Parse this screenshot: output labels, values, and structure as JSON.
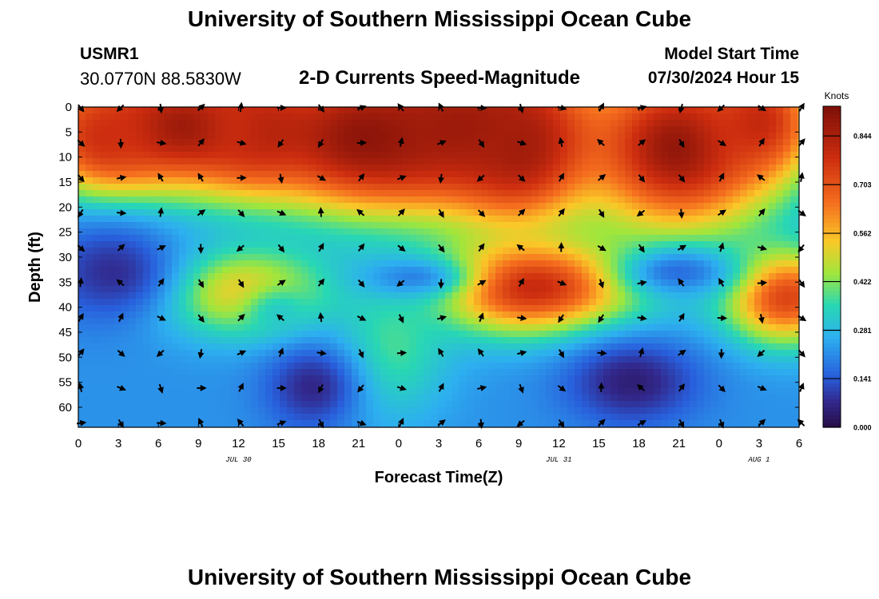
{
  "page": {
    "title": "University of Southern Mississippi Ocean Cube",
    "title_bottom": "University of Southern Mississippi Ocean Cube",
    "station_id": "USMR1",
    "station_coords": "30.0770N  88.5830W",
    "subtitle": "2-D Currents Speed-Magnitude",
    "model_start_label": "Model Start Time",
    "model_start_value": "07/30/2024 Hour 15"
  },
  "chart_data": {
    "type": "heatmap",
    "title": "2-D Currents Speed-Magnitude",
    "xlabel": "Forecast Time(Z)",
    "ylabel": "Depth (ft)",
    "x_range_hours": [
      0,
      54
    ],
    "y_range_ft": [
      0,
      64
    ],
    "x_tick_values": [
      0,
      3,
      6,
      9,
      12,
      15,
      18,
      21,
      24,
      27,
      30,
      33,
      36,
      39,
      42,
      45,
      48,
      51,
      54
    ],
    "x_tick_labels": [
      "0",
      "3",
      "6",
      "9",
      "12",
      "15",
      "18",
      "21",
      "0",
      "3",
      "6",
      "9",
      "12",
      "15",
      "18",
      "21",
      "0",
      "3",
      "6"
    ],
    "y_tick_values": [
      0,
      5,
      10,
      15,
      20,
      25,
      30,
      35,
      40,
      45,
      50,
      55,
      60
    ],
    "y_tick_labels": [
      "0",
      "5",
      "10",
      "15",
      "20",
      "25",
      "30",
      "35",
      "40",
      "45",
      "50",
      "55",
      "60"
    ],
    "date_labels": [
      {
        "label": "JUL 30",
        "hour": 12
      },
      {
        "label": "JUL 31",
        "hour": 36
      },
      {
        "label": "AUG 1",
        "hour": 51
      }
    ],
    "colorbar": {
      "unit": "Knots",
      "ticks": [
        0.0,
        0.141,
        0.281,
        0.422,
        0.562,
        0.703,
        0.844
      ],
      "tick_labels": [
        "0.000",
        "0.141",
        "0.281",
        "0.422",
        "0.562",
        "0.703",
        "0.844"
      ],
      "max": 0.93
    },
    "speed_hotspots": [
      {
        "hour": 8,
        "depth": 4,
        "value": 0.9,
        "sx": 7,
        "sy": 9
      },
      {
        "hour": 2,
        "depth": 6,
        "value": 0.78,
        "sx": 3,
        "sy": 7
      },
      {
        "hour": 13,
        "depth": 4,
        "value": 0.75,
        "sx": 2.5,
        "sy": 7
      },
      {
        "hour": 22,
        "depth": 6,
        "value": 0.92,
        "sx": 6,
        "sy": 10
      },
      {
        "hour": 29,
        "depth": 4,
        "value": 0.88,
        "sx": 6,
        "sy": 10
      },
      {
        "hour": 33,
        "depth": 8,
        "value": 0.86,
        "sx": 3.5,
        "sy": 10
      },
      {
        "hour": 45,
        "depth": 8,
        "value": 0.9,
        "sx": 5,
        "sy": 12
      },
      {
        "hour": 51,
        "depth": 3,
        "value": 0.8,
        "sx": 3,
        "sy": 8
      },
      {
        "hour": 12.5,
        "depth": 37,
        "value": 0.56,
        "sx": 4.5,
        "sy": 6
      },
      {
        "hour": 34,
        "depth": 36,
        "value": 0.8,
        "sx": 5.5,
        "sy": 6.5
      },
      {
        "hour": 53,
        "depth": 38,
        "value": 0.74,
        "sx": 3.2,
        "sy": 6.5
      },
      {
        "hour": 23.5,
        "depth": 48,
        "value": 0.38,
        "sx": 3,
        "sy": 10
      },
      {
        "hour": 15,
        "depth": 41,
        "value": 0.33,
        "sx": 2,
        "sy": 4
      }
    ],
    "slow_spots": [
      {
        "hour": 2.5,
        "depth": 33,
        "value": 0.08,
        "sx": 3.5,
        "sy": 7
      },
      {
        "hour": 17.5,
        "depth": 56,
        "value": 0.07,
        "sx": 2.5,
        "sy": 6
      },
      {
        "hour": 41.5,
        "depth": 55,
        "value": 0.05,
        "sx": 3.5,
        "sy": 6
      },
      {
        "hour": 45,
        "depth": 33,
        "value": 0.17,
        "sx": 3,
        "sy": 3.5
      },
      {
        "hour": 25,
        "depth": 34,
        "value": 0.2,
        "sx": 3,
        "sy": 3
      }
    ],
    "vector_rows_depth_ft": [
      0,
      7,
      14,
      21,
      28,
      35,
      42,
      49,
      56,
      63
    ],
    "vector_cols_hours": [
      0,
      3,
      6,
      9,
      12,
      15,
      18,
      21,
      24,
      27,
      30,
      33,
      36,
      39,
      42,
      45,
      48,
      51,
      54
    ]
  }
}
